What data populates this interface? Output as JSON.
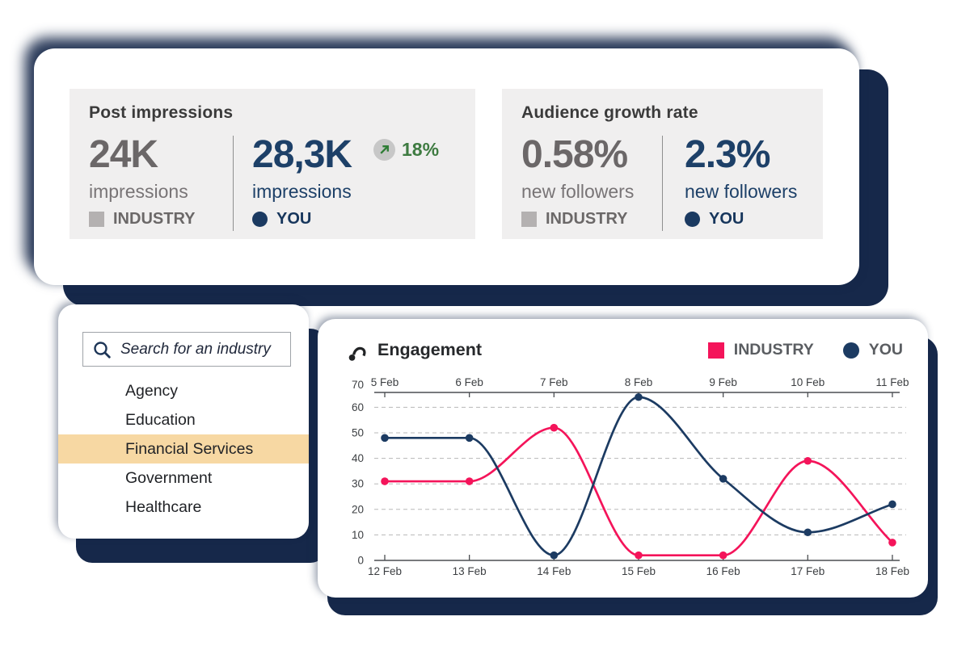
{
  "theme": {
    "shadow_navy": "#16284A",
    "panel_bg": "#F0EFEF",
    "highlight_orange": "#F7D8A3",
    "pink": "#F4145A",
    "navy": "#1C3B62",
    "green": "#3E7B41",
    "gray_stat": "#6B6768",
    "navy_stat": "#1D4068"
  },
  "stats_card": {
    "panels": [
      {
        "title": "Post impressions",
        "industry": {
          "value": "24K",
          "unit": "impressions",
          "label": "INDUSTRY"
        },
        "you": {
          "value": "28,3K",
          "unit": "impressions",
          "label": "YOU"
        },
        "delta": {
          "value": "18%",
          "direction": "up"
        }
      },
      {
        "title": "Audience growth rate",
        "industry": {
          "value": "0.58%",
          "unit": "new followers",
          "label": "INDUSTRY"
        },
        "you": {
          "value": "2.3%",
          "unit": "new followers",
          "label": "YOU"
        }
      }
    ]
  },
  "search_card": {
    "placeholder": "Search for an industry",
    "items": [
      "Agency",
      "Education",
      "Financial Services",
      "Government",
      "Healthcare"
    ],
    "selected_index": 2,
    "selected_item": "Financial Services"
  },
  "chart_card": {
    "title": "Engagement",
    "legend": [
      {
        "label": "INDUSTRY",
        "color": "#F4145A",
        "shape": "square"
      },
      {
        "label": "YOU",
        "color": "#1C3B62",
        "shape": "circle"
      }
    ]
  },
  "chart_data": {
    "type": "line",
    "title": "Engagement",
    "x_labels_top": [
      "5 Feb",
      "6 Feb",
      "7 Feb",
      "8 Feb",
      "9 Feb",
      "10 Feb",
      "11 Feb"
    ],
    "x_labels_bottom": [
      "12 Feb",
      "13 Feb",
      "14 Feb",
      "15 Feb",
      "16 Feb",
      "17 Feb",
      "18 Feb"
    ],
    "y_ticks": [
      0,
      10,
      20,
      30,
      40,
      50,
      60,
      70
    ],
    "ylim": [
      0,
      70
    ],
    "grid": "horizontal-dashed",
    "legend_position": "top-right",
    "line_smoothing": "monotone-cubic",
    "series": [
      {
        "name": "INDUSTRY",
        "color": "#F4145A",
        "values": [
          31,
          31,
          52,
          2,
          2,
          39,
          7
        ]
      },
      {
        "name": "YOU",
        "color": "#1C3B62",
        "values": [
          48,
          48,
          2,
          64,
          32,
          11,
          22
        ]
      }
    ]
  }
}
